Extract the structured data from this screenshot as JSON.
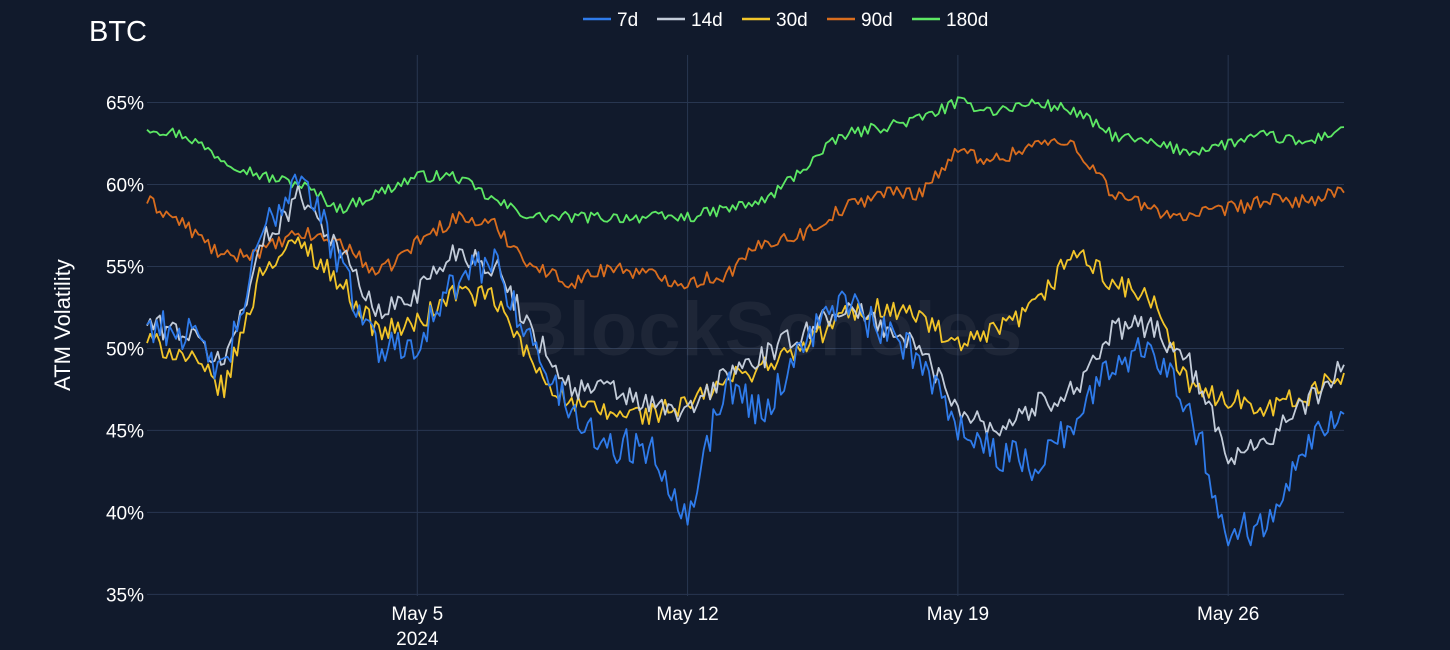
{
  "chart_data": {
    "type": "line",
    "title": "BTC",
    "xlabel": "",
    "ylabel": "ATM Volatility",
    "watermark": "BlockScholes",
    "x_start": "2024-04-28",
    "x_end": "2024-05-29",
    "x_ticks": [
      {
        "date": "2024-05-05",
        "label": "May 5",
        "sublabel": "2024"
      },
      {
        "date": "2024-05-12",
        "label": "May 12",
        "sublabel": ""
      },
      {
        "date": "2024-05-19",
        "label": "May 19",
        "sublabel": ""
      },
      {
        "date": "2024-05-26",
        "label": "May 26",
        "sublabel": ""
      }
    ],
    "ylim": [
      34.9,
      67.9
    ],
    "y_ticks": [
      35,
      40,
      45,
      50,
      55,
      60,
      65
    ],
    "y_tick_labels": [
      "35%",
      "40%",
      "45%",
      "50%",
      "55%",
      "60%",
      "65%"
    ],
    "grid": true,
    "legend_position": "top-center",
    "x": [
      "2024-04-28",
      "2024-04-29",
      "2024-04-30",
      "2024-05-01",
      "2024-05-02",
      "2024-05-03",
      "2024-05-04",
      "2024-05-05",
      "2024-05-06",
      "2024-05-07",
      "2024-05-08",
      "2024-05-09",
      "2024-05-10",
      "2024-05-11",
      "2024-05-12",
      "2024-05-13",
      "2024-05-14",
      "2024-05-15",
      "2024-05-16",
      "2024-05-17",
      "2024-05-18",
      "2024-05-19",
      "2024-05-20",
      "2024-05-21",
      "2024-05-22",
      "2024-05-23",
      "2024-05-24",
      "2024-05-25",
      "2024-05-26",
      "2024-05-27",
      "2024-05-28",
      "2024-05-29"
    ],
    "series": [
      {
        "name": "7d",
        "color": "#2f7bea",
        "values": [
          51.5,
          51.0,
          48.5,
          57.0,
          61.0,
          55.0,
          50.0,
          50.5,
          54.0,
          55.5,
          50.0,
          46.0,
          44.0,
          44.0,
          40.0,
          48.0,
          46.0,
          50.5,
          53.0,
          51.0,
          49.5,
          45.5,
          43.5,
          43.0,
          45.5,
          49.0,
          50.5,
          46.5,
          38.5,
          39.5,
          44.5,
          46.0
        ]
      },
      {
        "name": "14d",
        "color": "#c3ccd9",
        "values": [
          51.5,
          51.0,
          49.0,
          56.5,
          59.5,
          56.0,
          52.0,
          53.5,
          56.0,
          55.0,
          51.0,
          47.5,
          47.5,
          46.5,
          46.0,
          48.5,
          49.5,
          51.0,
          52.5,
          51.5,
          50.0,
          46.5,
          45.0,
          46.5,
          47.5,
          51.0,
          51.5,
          49.0,
          43.5,
          44.5,
          46.5,
          49.0
        ]
      },
      {
        "name": "30d",
        "color": "#f2c52a",
        "values": [
          50.5,
          49.5,
          47.5,
          55.0,
          56.5,
          54.0,
          51.0,
          51.5,
          53.5,
          53.0,
          49.0,
          46.5,
          46.0,
          46.0,
          46.5,
          48.0,
          49.0,
          50.0,
          52.0,
          52.5,
          52.0,
          50.0,
          51.0,
          52.5,
          56.0,
          54.0,
          53.0,
          47.5,
          47.0,
          46.5,
          47.0,
          48.5
        ]
      },
      {
        "name": "90d",
        "color": "#d96d1e",
        "values": [
          59.0,
          57.5,
          55.5,
          56.0,
          57.0,
          56.5,
          54.5,
          56.5,
          58.0,
          57.5,
          55.0,
          54.0,
          55.0,
          54.5,
          54.0,
          54.5,
          56.5,
          57.0,
          58.5,
          59.5,
          59.5,
          62.0,
          61.5,
          62.5,
          62.5,
          59.5,
          58.5,
          58.0,
          58.5,
          59.0,
          59.0,
          59.5
        ]
      },
      {
        "name": "180d",
        "color": "#5de864",
        "values": [
          63.5,
          63.0,
          61.5,
          60.5,
          60.0,
          58.5,
          59.5,
          60.5,
          60.5,
          59.0,
          58.0,
          58.0,
          58.0,
          58.0,
          58.0,
          58.5,
          59.0,
          61.0,
          63.0,
          63.5,
          64.0,
          65.0,
          64.5,
          65.0,
          64.5,
          63.0,
          62.5,
          62.0,
          62.5,
          63.0,
          62.5,
          63.5
        ]
      }
    ]
  }
}
